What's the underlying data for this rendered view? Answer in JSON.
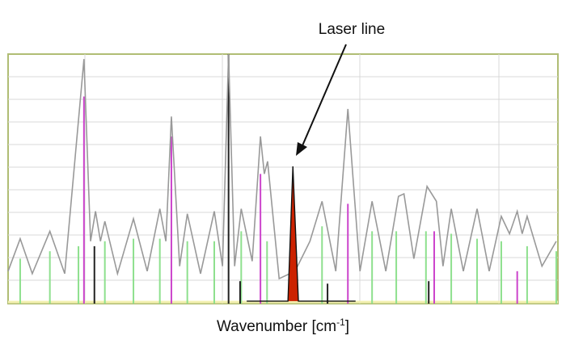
{
  "chart_data": {
    "type": "spectrum",
    "annotation": "Laser line",
    "x_label": "Wavenumber [cm",
    "x_label_sup": "-1",
    "x_label_end": "]",
    "xlim": [
      0,
      100
    ],
    "ylim": [
      0,
      100
    ],
    "sticks": [
      {
        "color": "#8ee08e",
        "x": [
          2.2,
          7.6,
          12.8,
          17.6,
          22.8,
          27.6,
          32.6,
          37.5,
          42.4,
          47.1,
          57.1,
          66.2,
          70.6,
          76,
          80.6,
          85.3,
          89.7,
          94.4,
          99.7
        ],
        "values": [
          18,
          21,
          23,
          25,
          26,
          26,
          25,
          25,
          29,
          25,
          31,
          29,
          29,
          29,
          28,
          26,
          25,
          23,
          21
        ]
      },
      {
        "color": "#cc44cc",
        "x": [
          13.8,
          29.7,
          45.9,
          61.8,
          77.5,
          92.6
        ],
        "values": [
          83,
          67,
          52,
          40,
          29,
          13
        ]
      },
      {
        "color": "#222222",
        "x": [
          15.7,
          40.1,
          42.2,
          58.1,
          76.5
        ],
        "values": [
          23,
          100,
          9,
          8,
          9
        ]
      }
    ],
    "envelope": {
      "color": "#999999",
      "x": [
        0,
        2.2,
        4.4,
        7.6,
        10.3,
        13.8,
        15,
        15.9,
        16.8,
        17.6,
        19.9,
        22.8,
        25.3,
        27.6,
        28.7,
        29.7,
        31.2,
        32.6,
        35,
        37.5,
        39,
        40.1,
        41.2,
        42.4,
        44.4,
        45.9,
        46.6,
        47.2,
        49.3,
        52.2,
        54.9,
        57.1,
        59.6,
        61.8,
        64,
        66.2,
        68.7,
        71,
        72,
        73.8,
        76.2,
        77.9,
        79.1,
        80.6,
        82.8,
        85.3,
        87.5,
        89.7,
        91.2,
        92.6,
        93.5,
        94.4,
        97.1,
        99.7
      ],
      "values": [
        13,
        26,
        12,
        29,
        12,
        98,
        25,
        37,
        25,
        33,
        12,
        34,
        13,
        38,
        25,
        75,
        15,
        36,
        12,
        37,
        15,
        100,
        15,
        38,
        17,
        67,
        52,
        57,
        10,
        13,
        25,
        41,
        13,
        78,
        13,
        41,
        13,
        43,
        44,
        18,
        47,
        41,
        15,
        38,
        13,
        38,
        13,
        35,
        28,
        37,
        28,
        35,
        15,
        25
      ]
    },
    "laser": {
      "color": "#cc2200",
      "x": [
        43.4,
        50.9,
        51.8,
        52.8,
        54,
        63.2
      ],
      "values": [
        1,
        1,
        55,
        1,
        1,
        1
      ]
    }
  }
}
